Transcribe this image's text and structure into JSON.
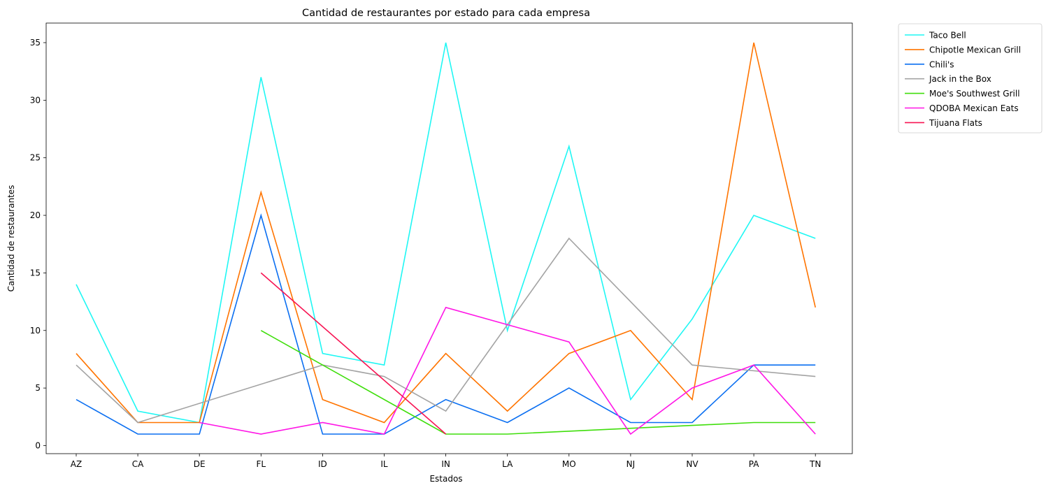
{
  "chart_data": {
    "type": "line",
    "title": "Cantidad de restaurantes por estado para cada empresa",
    "xlabel": "Estados",
    "ylabel": "Cantidad de restaurantes",
    "categories": [
      "AZ",
      "CA",
      "DE",
      "FL",
      "ID",
      "IL",
      "IN",
      "LA",
      "MO",
      "NJ",
      "NV",
      "PA",
      "TN"
    ],
    "ylim": [
      -0.7,
      36.7
    ],
    "yticks": [
      0,
      5,
      10,
      15,
      20,
      25,
      30,
      35
    ],
    "grid": false,
    "legend": "outside-top-right",
    "series": [
      {
        "name": "Taco Bell",
        "color": "#1ff7f4",
        "values": [
          14,
          3,
          2,
          32,
          8,
          7,
          35,
          10,
          26,
          4,
          11,
          20,
          18
        ]
      },
      {
        "name": "Chipotle Mexican Grill",
        "color": "#ff7400",
        "values": [
          8,
          2,
          2,
          22,
          4,
          2,
          8,
          3,
          8,
          10,
          4,
          35,
          12
        ]
      },
      {
        "name": "Chili's",
        "color": "#0b6ff1",
        "values": [
          4,
          1,
          1,
          20,
          1,
          1,
          4,
          2,
          5,
          2,
          2,
          7,
          7
        ]
      },
      {
        "name": "Jack in the Box",
        "color": "#a3a3a3",
        "values": [
          7,
          2,
          null,
          null,
          7,
          6,
          3,
          null,
          18,
          null,
          7,
          null,
          6
        ]
      },
      {
        "name": "Moe's Southwest Grill",
        "color": "#3fde0b",
        "values": [
          null,
          null,
          null,
          10,
          7,
          null,
          1,
          1,
          null,
          null,
          null,
          2,
          2
        ]
      },
      {
        "name": "QDOBA Mexican Eats",
        "color": "#ff16e6",
        "values": [
          null,
          null,
          2,
          1,
          2,
          1,
          12,
          null,
          9,
          1,
          5,
          7,
          1
        ]
      },
      {
        "name": "Tijuana Flats",
        "color": "#f71453",
        "values": [
          null,
          null,
          null,
          15,
          null,
          null,
          1,
          null,
          null,
          null,
          null,
          null,
          null
        ]
      }
    ]
  }
}
